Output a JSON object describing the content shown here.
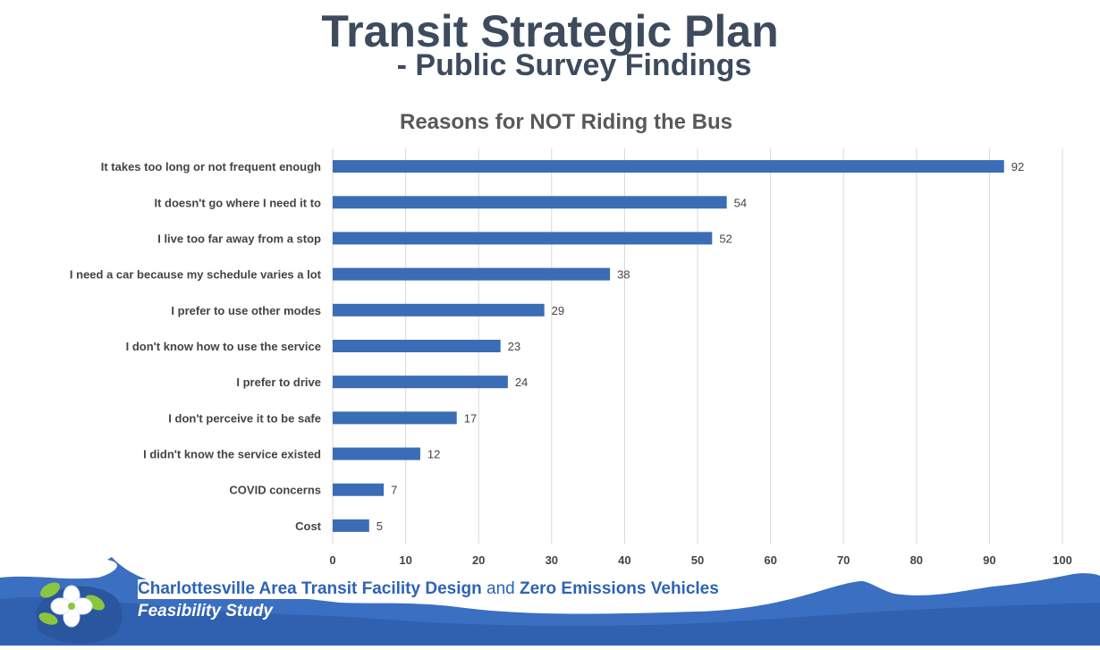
{
  "slide": {
    "title": "Transit Strategic Plan",
    "subtitle": "- Public Survey Findings"
  },
  "chart_data": {
    "type": "bar",
    "orientation": "horizontal",
    "title": "Reasons for NOT Riding the Bus",
    "categories": [
      "It takes too long or not frequent enough",
      "It doesn't go where I need it to",
      "I live too far away from a stop",
      "I need a car because my schedule varies a lot",
      "I prefer to use other modes",
      "I don't know how to use the service",
      "I prefer to drive",
      "I don't perceive it to be safe",
      "I didn't know the service existed",
      "COVID concerns",
      "Cost"
    ],
    "values": [
      92,
      54,
      52,
      38,
      29,
      23,
      24,
      17,
      12,
      7,
      5
    ],
    "xlim": [
      0,
      100
    ],
    "xticks": [
      0,
      10,
      20,
      30,
      40,
      50,
      60,
      70,
      80,
      90,
      100
    ],
    "grid": true,
    "data_labels": true,
    "bar_color": "#3a6db5"
  },
  "footer": {
    "line1_part1": "Charlottesville Area Transit Facility Design",
    "line1_and": "and",
    "line1_part2": "Zero Emissions Vehicles",
    "line2": "Feasibility Study",
    "accent_color": "#2d63b5",
    "wave_color": "#3b6fc1"
  }
}
